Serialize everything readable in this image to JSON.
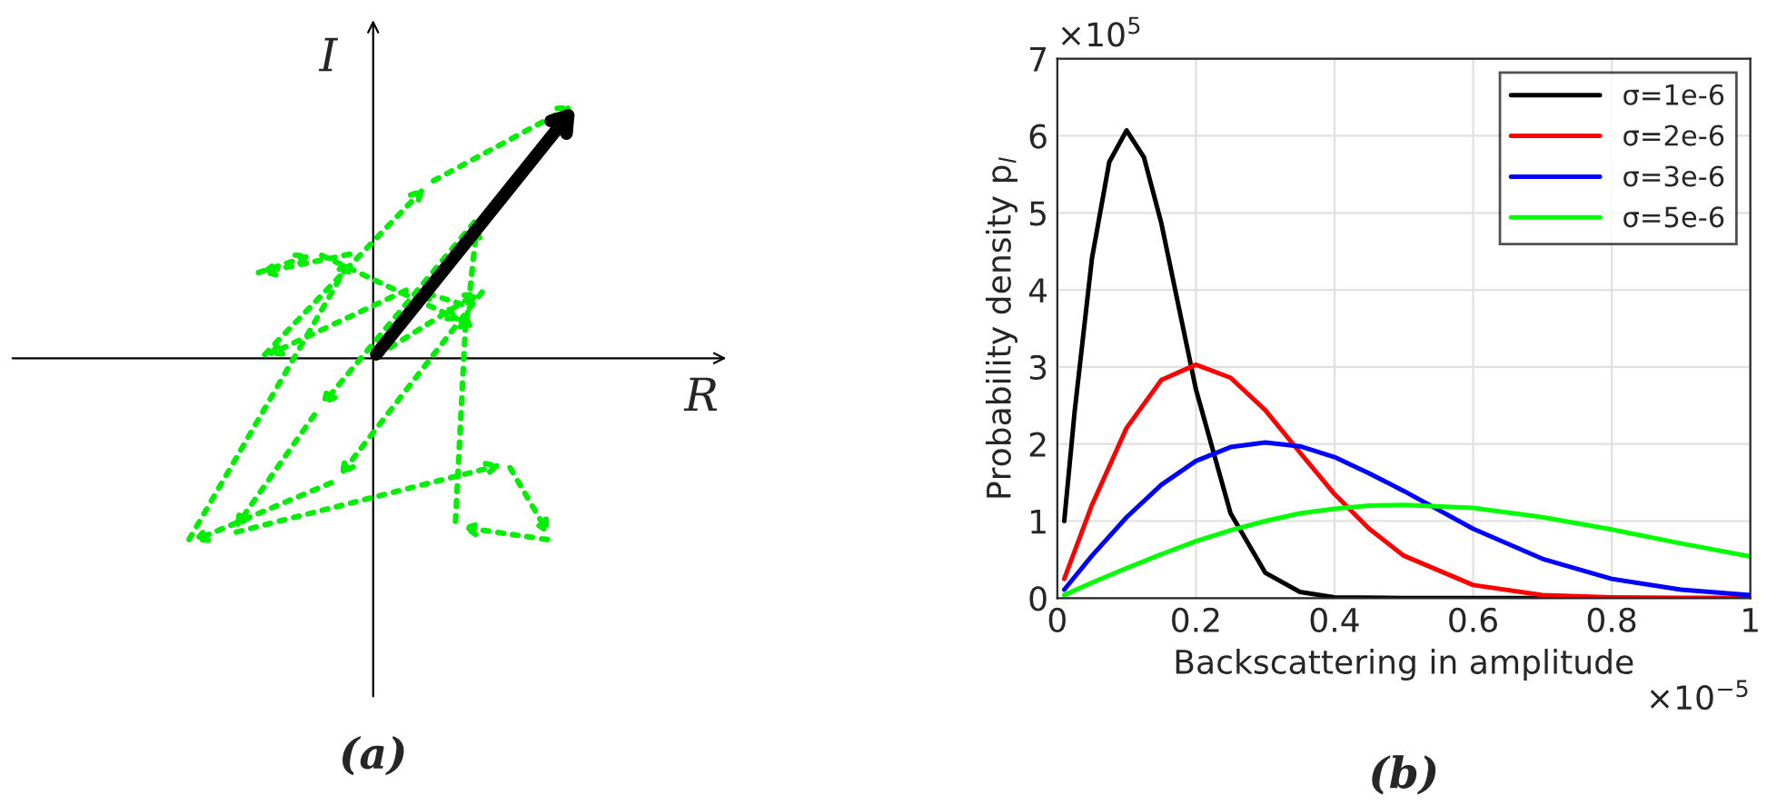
{
  "chart_data": [
    {
      "type": "other",
      "xlabel": "R",
      "ylabel": "I",
      "annotations": [
        "(a)"
      ]
    },
    {
      "type": "line",
      "xlabel": "Backscattering in amplitude",
      "ylabel": "Probability density p$_{l}$",
      "annotations": [
        "×10$^{5}$",
        "×10$^{−5}$",
        "(b)"
      ],
      "xlim": [
        0,
        1
      ],
      "xticks": [
        0,
        0.2,
        0.4,
        0.6,
        0.8,
        1
      ],
      "ylim": [
        0,
        7
      ],
      "yticks": [
        0,
        1,
        2,
        3,
        4,
        5,
        6,
        7
      ],
      "grid": true,
      "legend": "top right",
      "line_style": "solid",
      "series": [
        {
          "name": "σ=1e-6",
          "color": "#000000",
          "x": [
            0.01,
            0.025,
            0.05,
            0.075,
            0.1,
            0.125,
            0.15,
            0.175,
            0.2,
            0.25,
            0.3,
            0.35,
            0.4,
            0.5,
            0.6,
            0.8,
            1.0
          ],
          "values": [
            1.0,
            2.42,
            4.41,
            5.66,
            6.07,
            5.72,
            4.87,
            3.79,
            2.71,
            1.1,
            0.33,
            0.08,
            0.01,
            0,
            0,
            0,
            0
          ]
        },
        {
          "name": "σ=2e-6",
          "color": "#ff0000",
          "x": [
            0.01,
            0.05,
            0.1,
            0.15,
            0.2,
            0.25,
            0.3,
            0.35,
            0.4,
            0.45,
            0.5,
            0.6,
            0.7,
            0.8,
            0.9,
            1.0
          ],
          "values": [
            0.25,
            1.21,
            2.21,
            2.83,
            3.03,
            2.86,
            2.44,
            1.89,
            1.35,
            0.9,
            0.55,
            0.17,
            0.04,
            0.01,
            0,
            0
          ]
        },
        {
          "name": "σ=3e-6",
          "color": "#0000ff",
          "x": [
            0.01,
            0.05,
            0.1,
            0.15,
            0.2,
            0.25,
            0.3,
            0.35,
            0.4,
            0.45,
            0.5,
            0.6,
            0.7,
            0.8,
            0.9,
            1.0
          ],
          "values": [
            0.11,
            0.55,
            1.05,
            1.47,
            1.78,
            1.96,
            2.02,
            1.97,
            1.83,
            1.62,
            1.39,
            0.9,
            0.51,
            0.25,
            0.11,
            0.04
          ]
        },
        {
          "name": "σ=5e-6",
          "color": "#00ff00",
          "x": [
            0.01,
            0.05,
            0.1,
            0.15,
            0.2,
            0.25,
            0.3,
            0.35,
            0.4,
            0.45,
            0.5,
            0.6,
            0.7,
            0.8,
            0.9,
            1.0
          ],
          "values": [
            0.04,
            0.2,
            0.39,
            0.57,
            0.74,
            0.88,
            1.0,
            1.1,
            1.16,
            1.2,
            1.21,
            1.17,
            1.05,
            0.89,
            0.71,
            0.54
          ]
        }
      ]
    }
  ]
}
